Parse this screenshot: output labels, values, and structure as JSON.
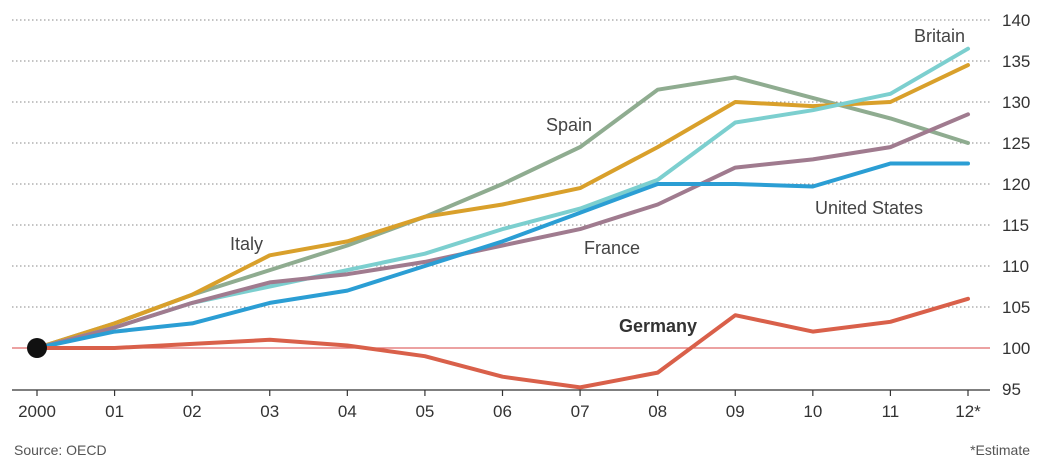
{
  "chart_data": {
    "type": "line",
    "title": "",
    "xlabel": "",
    "ylabel": "",
    "x": [
      "2000",
      "01",
      "02",
      "03",
      "04",
      "05",
      "06",
      "07",
      "08",
      "09",
      "10",
      "11",
      "12*"
    ],
    "ylim": [
      95,
      140
    ],
    "yticks": [
      95,
      100,
      105,
      110,
      115,
      120,
      125,
      130,
      135,
      140
    ],
    "grid": true,
    "reference_line": 100,
    "series": [
      {
        "name": "Spain",
        "color": "#8fac90",
        "values": [
          100,
          103,
          106.5,
          109.5,
          112.5,
          116,
          120,
          124.5,
          131.5,
          133,
          130.5,
          128,
          125
        ]
      },
      {
        "name": "Italy",
        "color": "#d9a02b",
        "values": [
          100,
          103,
          106.5,
          111.3,
          113,
          116,
          117.5,
          119.5,
          124.5,
          130,
          129.5,
          130,
          134.5
        ]
      },
      {
        "name": "Britain",
        "color": "#7ccfcf",
        "values": [
          100,
          102.5,
          105.5,
          107.5,
          109.5,
          111.5,
          114.5,
          117,
          120.5,
          127.5,
          129,
          131,
          136.5
        ]
      },
      {
        "name": "France",
        "color": "#a07b8f",
        "values": [
          100,
          102.5,
          105.5,
          108,
          109,
          110.5,
          112.5,
          114.5,
          117.5,
          122,
          123,
          124.5,
          128.5
        ]
      },
      {
        "name": "United States",
        "color": "#2b9ed4",
        "values": [
          100,
          102,
          103,
          105.5,
          107,
          110,
          113,
          116.5,
          120,
          120,
          119.7,
          122.5,
          122.5
        ]
      },
      {
        "name": "Germany",
        "color": "#d9604a",
        "values": [
          100,
          100,
          100.5,
          101,
          100.3,
          99,
          96.5,
          95.2,
          97,
          104,
          102,
          103.2,
          106
        ]
      }
    ],
    "labels": {
      "spain": "Spain",
      "italy": "Italy",
      "britain": "Britain",
      "france": "France",
      "us": "United States",
      "germany": "Germany"
    },
    "source": "Source: OECD",
    "footnote": "*Estimate"
  },
  "colors": {
    "grid": "#888888",
    "baseline": "#e06a6a",
    "axis": "#333333",
    "marker": "#111111"
  }
}
